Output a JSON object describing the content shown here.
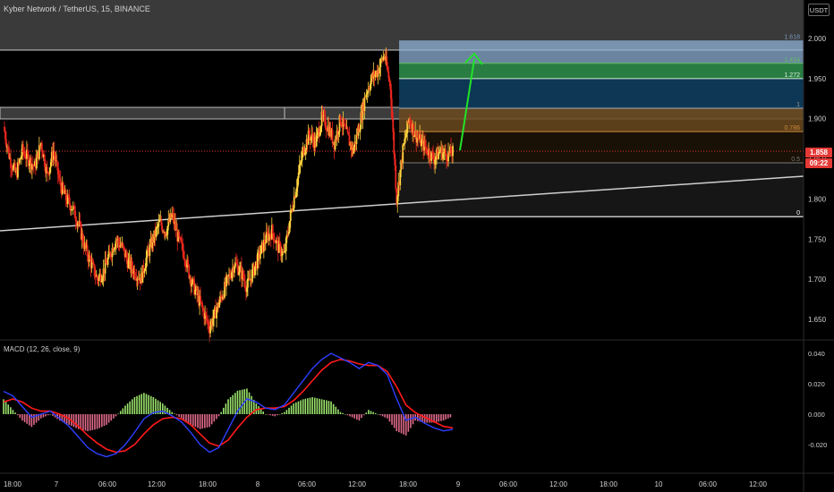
{
  "header": {
    "symbol": "Kyber Network / TetherUS, 15, BINANCE",
    "currency_button": "USDT"
  },
  "price_axis": {
    "labels": [
      "2.000",
      "1.950",
      "1.900",
      "1.850",
      "1.800",
      "1.750",
      "1.700",
      "1.650"
    ],
    "current_price": "1.858",
    "countdown": "09:22"
  },
  "fib_levels": [
    {
      "label": "1.618",
      "color": "#7a9bbd"
    },
    {
      "label": "1.414",
      "color": "#5fc05f"
    },
    {
      "label": "1.272",
      "color": "#d8f2d8"
    },
    {
      "label": "1",
      "color": "#9a9a9a"
    },
    {
      "label": "0.786",
      "color": "#d08a3a"
    },
    {
      "label": "0.5",
      "color": "#7a7a7a"
    },
    {
      "label": "0",
      "color": "#ffffff"
    }
  ],
  "macd": {
    "title": "MACD (12, 26, close, 9)",
    "axis_labels": [
      "0.040",
      "0.020",
      "0.000",
      "-0.020"
    ]
  },
  "time_axis": {
    "labels": [
      "18:00",
      "7",
      "06:00",
      "12:00",
      "18:00",
      "8",
      "06:00",
      "12:00",
      "18:00",
      "9",
      "06:00",
      "12:00",
      "18:00",
      "10",
      "06:00",
      "12:00"
    ]
  },
  "colors": {
    "background": "#000000",
    "candle_up": "#ffd23f",
    "candle_down": "#e8261e",
    "macd_line": "#2d3fff",
    "signal_line": "#ff1a1a",
    "hist_up": "#9be36b",
    "hist_down": "#e06a8a",
    "arrow": "#22e22a"
  },
  "chart_data": {
    "type": "candlestick",
    "y_axis_range": [
      1.63,
      2.02
    ],
    "current_price": 1.858,
    "close_series": [
      1.89,
      1.85,
      1.83,
      1.86,
      1.85,
      1.84,
      1.87,
      1.83,
      1.86,
      1.82,
      1.8,
      1.79,
      1.77,
      1.74,
      1.72,
      1.7,
      1.71,
      1.73,
      1.75,
      1.74,
      1.72,
      1.71,
      1.7,
      1.73,
      1.75,
      1.77,
      1.76,
      1.78,
      1.75,
      1.73,
      1.7,
      1.68,
      1.66,
      1.64,
      1.66,
      1.68,
      1.7,
      1.72,
      1.71,
      1.69,
      1.71,
      1.73,
      1.75,
      1.76,
      1.74,
      1.73,
      1.78,
      1.82,
      1.86,
      1.88,
      1.87,
      1.9,
      1.89,
      1.87,
      1.9,
      1.88,
      1.86,
      1.89,
      1.93,
      1.95,
      1.96,
      1.98,
      1.94,
      1.8,
      1.86,
      1.9,
      1.88,
      1.87,
      1.86,
      1.85,
      1.86,
      1.855,
      1.858
    ],
    "fib_prices": {
      "0": 1.778,
      "0.5": 1.845,
      "0.786": 1.884,
      "1": 1.913,
      "1.272": 1.95,
      "1.414": 1.969,
      "1.618": 1.997
    },
    "horizontal_zones": [
      {
        "from": 1.912,
        "to": 1.898
      },
      {
        "from": 1.985,
        "to": 2.02
      }
    ],
    "trendline": [
      {
        "x": 0,
        "y": 1.762
      },
      {
        "x": 1,
        "y": 1.829
      }
    ],
    "macd": {
      "macd_line": [
        0.015,
        0.012,
        0.005,
        -0.002,
        0.0,
        0.002,
        -0.003,
        -0.008,
        -0.015,
        -0.022,
        -0.026,
        -0.028,
        -0.026,
        -0.02,
        -0.012,
        -0.003,
        0.001,
        0.002,
        -0.001,
        -0.005,
        -0.012,
        -0.02,
        -0.025,
        -0.022,
        -0.01,
        0.002,
        0.01,
        0.008,
        0.004,
        0.003,
        0.006,
        0.014,
        0.022,
        0.03,
        0.036,
        0.04,
        0.037,
        0.034,
        0.03,
        0.034,
        0.032,
        0.026,
        0.01,
        -0.004,
        -0.002,
        -0.006,
        -0.009,
        -0.011,
        -0.01
      ],
      "signal_line": [
        0.008,
        0.01,
        0.008,
        0.004,
        0.002,
        0.002,
        0.0,
        -0.003,
        -0.008,
        -0.014,
        -0.019,
        -0.023,
        -0.025,
        -0.024,
        -0.02,
        -0.013,
        -0.007,
        -0.003,
        -0.002,
        -0.003,
        -0.007,
        -0.013,
        -0.019,
        -0.021,
        -0.017,
        -0.009,
        -0.002,
        0.003,
        0.004,
        0.004,
        0.005,
        0.009,
        0.015,
        0.022,
        0.029,
        0.034,
        0.036,
        0.035,
        0.033,
        0.032,
        0.032,
        0.028,
        0.018,
        0.006,
        0.001,
        -0.002,
        -0.005,
        -0.008,
        -0.009
      ],
      "y_range": [
        -0.028,
        0.044
      ]
    }
  }
}
